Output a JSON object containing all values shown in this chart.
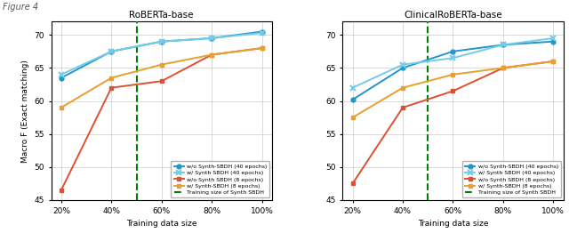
{
  "x_labels": [
    "20%",
    "40%",
    "60%",
    "80%",
    "100%"
  ],
  "x_vals": [
    20,
    40,
    60,
    80,
    100
  ],
  "dashed_line_x": 50,
  "left_title": "RoBERTa-base",
  "right_title": "ClinicalRoBERTa-base",
  "ylabel": "Macro F (Exact matching)",
  "xlabel": "Training data size",
  "ylim": [
    45,
    72
  ],
  "yticks": [
    45,
    50,
    55,
    60,
    65,
    70
  ],
  "left": {
    "wo_40ep": [
      63.5,
      67.5,
      69.0,
      69.5,
      70.5
    ],
    "w_40ep": [
      64.0,
      67.5,
      69.0,
      69.5,
      70.3
    ],
    "wo_8ep": [
      46.5,
      62.0,
      63.0,
      67.0,
      68.0
    ],
    "w_8ep": [
      59.0,
      63.5,
      65.5,
      67.0,
      68.0
    ]
  },
  "right": {
    "wo_40ep": [
      60.2,
      65.0,
      67.5,
      68.5,
      69.0
    ],
    "w_40ep": [
      62.0,
      65.5,
      66.5,
      68.5,
      69.5
    ],
    "wo_8ep": [
      47.5,
      59.0,
      61.5,
      65.0,
      66.0
    ],
    "w_8ep": [
      57.5,
      62.0,
      64.0,
      65.0,
      66.0
    ]
  },
  "colors": {
    "blue_dark": "#2196c8",
    "blue_light": "#74cce8",
    "red": "#e05030",
    "orange": "#e8a030"
  },
  "legend_labels": [
    "w/o Synth-SBDH (40 epochs)",
    "w/ Synth SBDH (40 epochs)",
    "w/o Synth SBDH (8 epochs)",
    "w/ Synth-SBDH (8 epochs)",
    "Training size of Synth SBDH"
  ],
  "suptitle": "Figure 4"
}
